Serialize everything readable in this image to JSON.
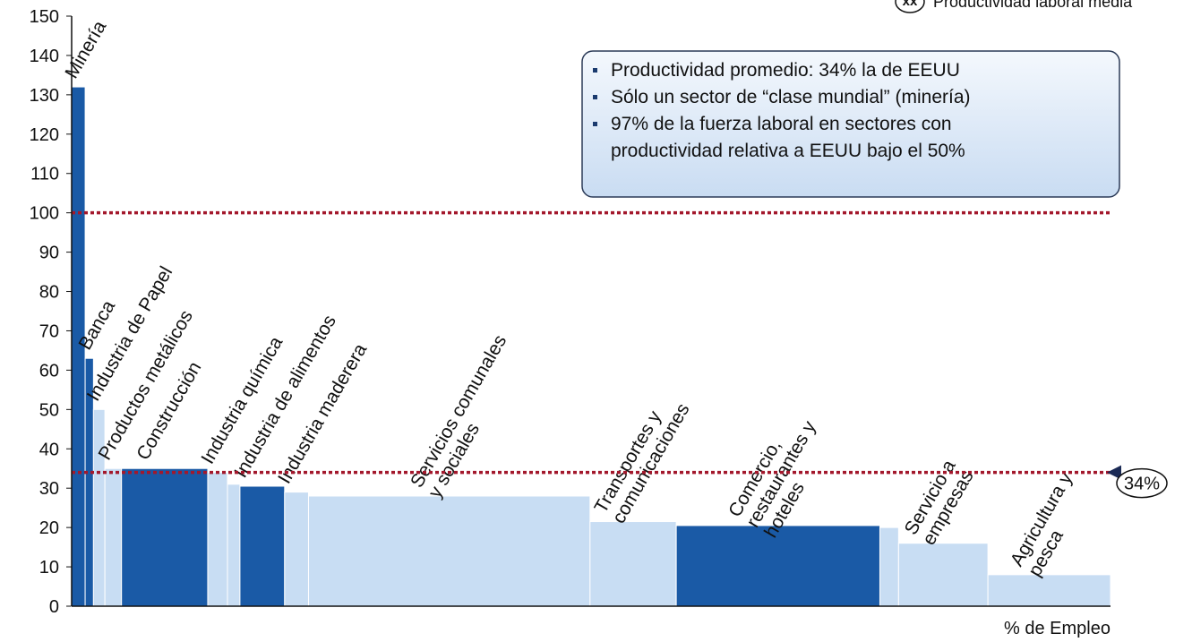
{
  "chart_data": {
    "type": "variable-width-bar",
    "x_label": "% de Empleo",
    "legend_marker": "xx",
    "legend_text": "Productividad laboral media",
    "bullets": [
      "Productividad promedio: 34% la de EEUU",
      "Sólo un sector de “clase mundial” (minería)",
      "97% de la fuerza laboral en sectores con",
      "productividad relativa a EEUU bajo el 50%"
    ],
    "categories": [
      [
        "Minería"
      ],
      [
        "Banca"
      ],
      [
        "Industria de Papel"
      ],
      [
        "Productos metálicos"
      ],
      [
        "Construcción"
      ],
      [
        "Industria química"
      ],
      null,
      [
        "Industria de alimentos"
      ],
      [
        "Industria maderera"
      ],
      [
        "Servicios comunales",
        "y sociales"
      ],
      [
        "Transportes y",
        "comunicaciones"
      ],
      [
        "Comercio,",
        "restaurantes y",
        "hoteles"
      ],
      null,
      [
        "Servicio a",
        "empresas"
      ],
      [
        "Agricultura y",
        "pesca"
      ]
    ],
    "bins": [
      0,
      1.3,
      2.1,
      3.2,
      4.8,
      13.1,
      15.0,
      16.2,
      20.5,
      22.8,
      49.9,
      58.2,
      77.8,
      79.6,
      88.2,
      100
    ],
    "values": [
      132,
      63,
      50,
      35,
      35,
      34,
      31,
      30.5,
      29,
      28,
      21.5,
      20.5,
      20,
      16,
      8
    ],
    "colors": [
      "#1a5aa6",
      "#1a5aa6",
      "#c8ddf3",
      "#c8ddf3",
      "#1a5aa6",
      "#c8ddf3",
      "#c8ddf3",
      "#1a5aa6",
      "#c8ddf3",
      "#c8ddf3",
      "#c8ddf3",
      "#1a5aa6",
      "#c8ddf3",
      "#c8ddf3",
      "#c8ddf3"
    ],
    "reference_lines": [
      {
        "value": 100
      },
      {
        "value": 34,
        "label": "34%"
      }
    ],
    "reference_color": "#a3182c",
    "xlim": [
      0,
      100
    ],
    "ylim": [
      0,
      150
    ],
    "yticks": [
      0,
      10,
      20,
      30,
      40,
      50,
      60,
      70,
      80,
      90,
      100,
      110,
      120,
      130,
      140,
      150
    ]
  }
}
